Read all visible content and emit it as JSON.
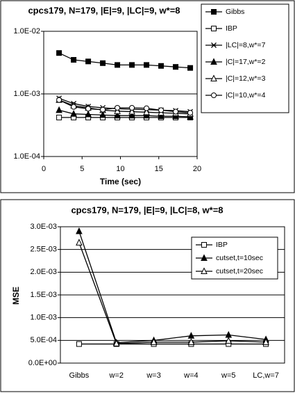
{
  "chart_data": [
    {
      "type": "line",
      "title": "cpcs179, N=179, |E|=9, |LC|=9, w*=8",
      "x_label": "Time (sec)",
      "x": [
        2,
        3.9,
        5.8,
        7.7,
        9.6,
        11.5,
        13.4,
        15.3,
        17.2,
        19.1
      ],
      "xlim": [
        0,
        20
      ],
      "xticks": [
        0,
        5,
        10,
        15,
        20
      ],
      "yscale": "log",
      "ylim": [
        0.0001,
        0.01
      ],
      "yticks": [
        {
          "value": 0.0001,
          "label": "1.0E-04"
        },
        {
          "value": 0.001,
          "label": "1.0E-03"
        },
        {
          "value": 0.01,
          "label": "1.0E-02"
        }
      ],
      "grid": true,
      "legend": "upper right",
      "series": [
        {
          "name": "Gibbs",
          "color": "#000000",
          "marker": "square-filled",
          "values": [
            0.0045,
            0.0035,
            0.0033,
            0.0031,
            0.0029,
            0.0029,
            0.0029,
            0.0028,
            0.0027,
            0.0026
          ]
        },
        {
          "name": "IBP",
          "color": "#000000",
          "marker": "square-open",
          "values": [
            0.00042,
            0.00042,
            0.00042,
            0.00042,
            0.00042,
            0.00042,
            0.00042,
            0.00042,
            0.00042,
            0.00042
          ]
        },
        {
          "name": "|LC|=8,w*=7",
          "color": "#000000",
          "marker": "asterisk",
          "values": [
            0.00085,
            0.0007,
            0.00063,
            0.0006,
            0.00058,
            0.00057,
            0.00056,
            0.00055,
            0.00054,
            0.00052
          ]
        },
        {
          "name": "|C|=17,w*=2",
          "color": "#000000",
          "marker": "triangle-filled",
          "values": [
            0.00055,
            0.00048,
            0.00047,
            0.00046,
            0.00045,
            0.00045,
            0.00045,
            0.00044,
            0.00044,
            0.00043
          ]
        },
        {
          "name": "|C|=12,w*=3",
          "color": "#000000",
          "marker": "triangle-open",
          "values": [
            0.0008,
            0.00065,
            0.0006,
            0.00055,
            0.00053,
            0.00052,
            0.00051,
            0.0005,
            0.00049,
            0.00048
          ]
        },
        {
          "name": "|C|=10,w*=4",
          "color": "#000000",
          "marker": "circle-open",
          "values": [
            0.0008,
            0.00062,
            0.00058,
            0.00056,
            0.0006,
            0.0006,
            0.00059,
            0.00055,
            0.00052,
            0.0005
          ]
        }
      ]
    },
    {
      "type": "line",
      "title": "cpcs179, N=179, |E|=9, |LC|=8, w*=8",
      "y_label": "MSE",
      "categories": [
        "Gibbs",
        "w=2",
        "w=3",
        "w=4",
        "w=5",
        "LC,w=7"
      ],
      "ylim": [
        0,
        0.003
      ],
      "yticks": [
        {
          "value": 0,
          "label": "0.0E+00"
        },
        {
          "value": 0.0005,
          "label": "5.0E-04"
        },
        {
          "value": 0.001,
          "label": "1.0E-03"
        },
        {
          "value": 0.0015,
          "label": "1.5E-03"
        },
        {
          "value": 0.002,
          "label": "2.0E-03"
        },
        {
          "value": 0.0025,
          "label": "2.5E-03"
        },
        {
          "value": 0.003,
          "label": "3.0E-03"
        }
      ],
      "grid": true,
      "legend": "upper right",
      "series": [
        {
          "name": "IBP",
          "color": "#000000",
          "marker": "square-open",
          "values": [
            0.00042,
            0.00042,
            0.00042,
            0.00042,
            0.00042,
            0.00042
          ]
        },
        {
          "name": "cutset,t=10sec",
          "color": "#000000",
          "marker": "triangle-filled",
          "values": [
            0.0029,
            0.00045,
            0.0005,
            0.0006,
            0.00062,
            0.00052
          ]
        },
        {
          "name": "cutset,t=20sec",
          "color": "#000000",
          "marker": "triangle-open",
          "values": [
            0.00265,
            0.00043,
            0.00046,
            0.00046,
            0.00049,
            0.00046
          ]
        }
      ]
    }
  ]
}
